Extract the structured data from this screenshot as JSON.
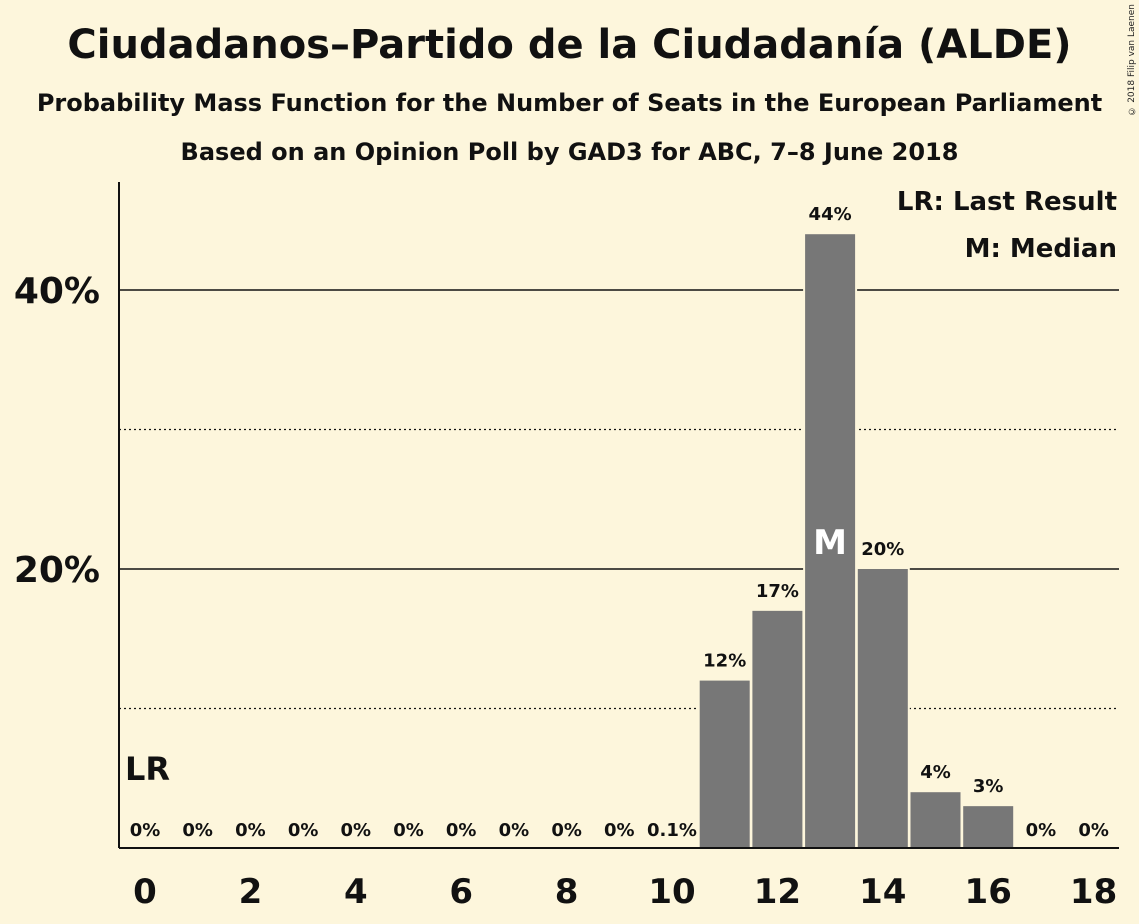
{
  "title": "Ciudadanos–Partido de la Ciudadanía (ALDE)",
  "subtitle_line1": "Probability Mass Function for the Number of Seats in the European Parliament",
  "subtitle_line2": "Based on an Opinion Poll by GAD3 for ABC, 7–8 June 2018",
  "copyright": "© 2018 Filip van Laenen",
  "legend": {
    "last_result": "LR: Last Result",
    "median": "M: Median",
    "placement": "top-right"
  },
  "colors": {
    "background": "#fdf6dc",
    "bar": "#777777",
    "text": "#111111"
  },
  "chart_data": {
    "type": "bar",
    "x": [
      0,
      1,
      2,
      3,
      4,
      5,
      6,
      7,
      8,
      9,
      10,
      11,
      12,
      13,
      14,
      15,
      16,
      17,
      18
    ],
    "values": [
      0,
      0,
      0,
      0,
      0,
      0,
      0,
      0,
      0,
      0,
      0.1,
      12,
      17,
      44,
      20,
      4,
      3,
      0,
      0
    ],
    "value_labels": [
      "0%",
      "0%",
      "0%",
      "0%",
      "0%",
      "0%",
      "0%",
      "0%",
      "0%",
      "0%",
      "0.1%",
      "12%",
      "17%",
      "44%",
      "20%",
      "4%",
      "3%",
      "0%",
      "0%"
    ],
    "precise_values": [
      0,
      0,
      0,
      0,
      0,
      0,
      0,
      0,
      0,
      0,
      0.1,
      12.1,
      17.0,
      43.8,
      19.7,
      3.9,
      3.2,
      0,
      0
    ],
    "x_tick_labels": [
      "0",
      "2",
      "4",
      "6",
      "8",
      "10",
      "12",
      "14",
      "16",
      "18"
    ],
    "x_ticks": [
      0,
      2,
      4,
      6,
      8,
      10,
      12,
      14,
      16,
      18
    ],
    "y_tick_labels": [
      "20%",
      "40%"
    ],
    "y_ticks": [
      20,
      40
    ],
    "y_minor_gridlines": [
      10,
      30
    ],
    "ylim": [
      0,
      47.5
    ],
    "last_result": {
      "seat": 0,
      "label": "LR"
    },
    "median": {
      "seat": 13,
      "label": "M"
    },
    "grid": true
  }
}
